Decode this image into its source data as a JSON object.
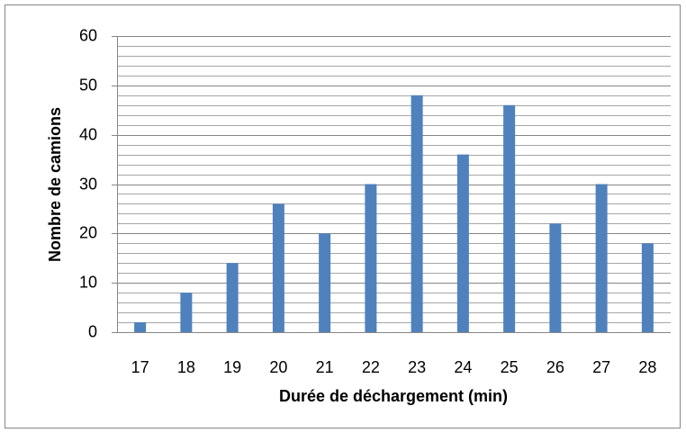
{
  "chart_data": {
    "type": "bar",
    "x_label": "Durée de déchargement (min)",
    "y_label": "Nombre de camions",
    "categories": [
      "17",
      "18",
      "19",
      "20",
      "21",
      "22",
      "23",
      "24",
      "25",
      "26",
      "27",
      "28"
    ],
    "values": [
      2,
      8,
      14,
      26,
      20,
      30,
      48,
      36,
      46,
      22,
      30,
      18
    ],
    "color": "#4f81bd",
    "ylim": [
      0,
      60
    ],
    "yticks": [
      0,
      10,
      20,
      30,
      40,
      50,
      60
    ],
    "minor_yticks": [
      2,
      4,
      6,
      8,
      12,
      14,
      16,
      18,
      22,
      24,
      26,
      28,
      32,
      34,
      36,
      38,
      42,
      44,
      46,
      48,
      52,
      54,
      56,
      58
    ],
    "grid": true
  }
}
